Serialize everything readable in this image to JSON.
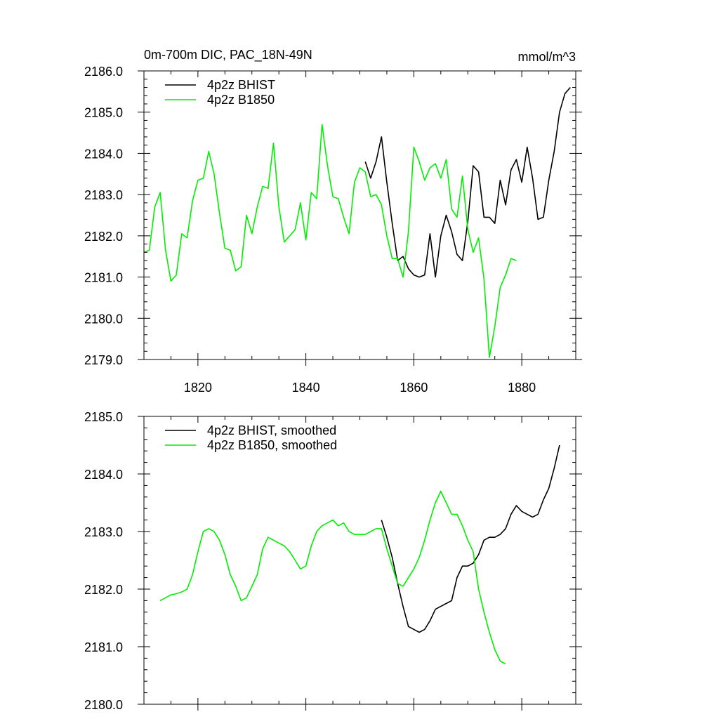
{
  "chart_data": [
    {
      "type": "line",
      "title_left": "0m-700m DIC, PAC_18N-49N",
      "title_right": "mmol/m^3",
      "xlim": [
        1810,
        1890
      ],
      "ylim": [
        2179.0,
        2186.0
      ],
      "xticks": [
        1820,
        1840,
        1860,
        1880
      ],
      "xtick_labels": [
        "1820",
        "1840",
        "1860",
        "1880"
      ],
      "yticks": [
        2179.0,
        2180.0,
        2181.0,
        2182.0,
        2183.0,
        2184.0,
        2185.0,
        2186.0
      ],
      "ytick_labels": [
        "2179.0",
        "2180.0",
        "2181.0",
        "2182.0",
        "2183.0",
        "2184.0",
        "2185.0",
        "2186.0"
      ],
      "legend_position": "top-left",
      "series": [
        {
          "name": "4p2z BHIST",
          "color": "#000000",
          "x": [
            1851,
            1852,
            1853,
            1854,
            1855,
            1856,
            1857,
            1858,
            1859,
            1860,
            1861,
            1862,
            1863,
            1864,
            1865,
            1866,
            1867,
            1868,
            1869,
            1870,
            1871,
            1872,
            1873,
            1874,
            1875,
            1876,
            1877,
            1878,
            1879,
            1880,
            1881,
            1882,
            1883,
            1884,
            1885,
            1886,
            1887,
            1888,
            1889
          ],
          "y": [
            2183.8,
            2183.4,
            2183.8,
            2184.4,
            2183.3,
            2182.3,
            2181.4,
            2181.5,
            2181.2,
            2181.05,
            2181.0,
            2181.05,
            2182.05,
            2181.0,
            2182.0,
            2182.5,
            2182.1,
            2181.55,
            2181.4,
            2182.35,
            2183.7,
            2183.55,
            2182.45,
            2182.45,
            2182.3,
            2183.35,
            2182.75,
            2183.6,
            2183.85,
            2183.3,
            2184.15,
            2183.4,
            2182.4,
            2182.45,
            2183.35,
            2184.05,
            2185.0,
            2185.45,
            2185.6
          ]
        },
        {
          "name": "4p2z B1850",
          "color": "#00ee00",
          "x": [
            1810,
            1811,
            1812,
            1813,
            1814,
            1815,
            1816,
            1817,
            1818,
            1819,
            1820,
            1821,
            1822,
            1823,
            1824,
            1825,
            1826,
            1827,
            1828,
            1829,
            1830,
            1831,
            1832,
            1833,
            1834,
            1835,
            1836,
            1837,
            1838,
            1839,
            1840,
            1841,
            1842,
            1843,
            1844,
            1845,
            1846,
            1847,
            1848,
            1849,
            1850,
            1851,
            1852,
            1853,
            1854,
            1855,
            1856,
            1857,
            1858,
            1859,
            1860,
            1861,
            1862,
            1863,
            1864,
            1865,
            1866,
            1867,
            1868,
            1869,
            1870,
            1871,
            1872,
            1873,
            1874,
            1875,
            1876,
            1877,
            1878,
            1879
          ],
          "y": [
            2181.6,
            2181.65,
            2182.7,
            2183.05,
            2181.65,
            2180.9,
            2181.05,
            2182.05,
            2181.95,
            2182.85,
            2183.35,
            2183.4,
            2184.05,
            2183.5,
            2182.55,
            2181.7,
            2181.65,
            2181.15,
            2181.25,
            2182.5,
            2182.05,
            2182.7,
            2183.2,
            2183.15,
            2184.25,
            2182.7,
            2181.85,
            2182.0,
            2182.15,
            2182.8,
            2181.9,
            2183.05,
            2182.9,
            2184.7,
            2183.7,
            2182.95,
            2182.9,
            2182.45,
            2182.05,
            2183.3,
            2183.65,
            2183.55,
            2182.95,
            2183.0,
            2182.75,
            2182.0,
            2181.45,
            2181.45,
            2181.0,
            2182.1,
            2184.15,
            2183.8,
            2183.35,
            2183.65,
            2183.75,
            2183.4,
            2183.85,
            2182.65,
            2182.45,
            2183.45,
            2182.15,
            2181.6,
            2181.95,
            2180.95,
            2179.05,
            2179.8,
            2180.75,
            2181.05,
            2181.45,
            2181.4
          ]
        }
      ]
    },
    {
      "type": "line",
      "xlim": [
        1810,
        1890
      ],
      "ylim": [
        2180.0,
        2185.0
      ],
      "xticks": [
        1820,
        1840,
        1860,
        1880
      ],
      "yticks": [
        2180.0,
        2181.0,
        2182.0,
        2183.0,
        2184.0,
        2185.0
      ],
      "ytick_labels": [
        "2180.0",
        "2181.0",
        "2182.0",
        "2183.0",
        "2184.0",
        "2185.0"
      ],
      "legend_position": "top-left",
      "series": [
        {
          "name": "4p2z BHIST, smoothed",
          "color": "#000000",
          "x": [
            1854,
            1855,
            1856,
            1857,
            1858,
            1859,
            1860,
            1861,
            1862,
            1863,
            1864,
            1865,
            1866,
            1867,
            1868,
            1869,
            1870,
            1871,
            1872,
            1873,
            1874,
            1875,
            1876,
            1877,
            1878,
            1879,
            1880,
            1881,
            1882,
            1883,
            1884,
            1885,
            1886,
            1887
          ],
          "y": [
            2183.2,
            2182.9,
            2182.55,
            2182.1,
            2181.7,
            2181.35,
            2181.3,
            2181.25,
            2181.3,
            2181.45,
            2181.65,
            2181.7,
            2181.75,
            2181.8,
            2182.2,
            2182.4,
            2182.4,
            2182.45,
            2182.6,
            2182.85,
            2182.9,
            2182.9,
            2182.95,
            2183.05,
            2183.3,
            2183.45,
            2183.35,
            2183.3,
            2183.25,
            2183.3,
            2183.55,
            2183.75,
            2184.1,
            2184.5
          ]
        },
        {
          "name": "4p2z B1850, smoothed",
          "color": "#00ee00",
          "x": [
            1813,
            1814,
            1815,
            1816,
            1817,
            1818,
            1819,
            1820,
            1821,
            1822,
            1823,
            1824,
            1825,
            1826,
            1827,
            1828,
            1829,
            1830,
            1831,
            1832,
            1833,
            1834,
            1835,
            1836,
            1837,
            1838,
            1839,
            1840,
            1841,
            1842,
            1843,
            1844,
            1845,
            1846,
            1847,
            1848,
            1849,
            1850,
            1851,
            1852,
            1853,
            1854,
            1855,
            1856,
            1857,
            1858,
            1859,
            1860,
            1861,
            1862,
            1863,
            1864,
            1865,
            1866,
            1867,
            1868,
            1869,
            1870,
            1871,
            1872,
            1873,
            1874,
            1875,
            1876,
            1877
          ],
          "y": [
            2181.8,
            2181.85,
            2181.9,
            2181.92,
            2181.95,
            2182.0,
            2182.25,
            2182.65,
            2183.0,
            2183.05,
            2183.0,
            2182.85,
            2182.6,
            2182.25,
            2182.05,
            2181.8,
            2181.85,
            2182.05,
            2182.25,
            2182.7,
            2182.9,
            2182.85,
            2182.8,
            2182.75,
            2182.65,
            2182.5,
            2182.35,
            2182.4,
            2182.75,
            2183.0,
            2183.1,
            2183.15,
            2183.2,
            2183.1,
            2183.15,
            2183.0,
            2182.95,
            2182.95,
            2182.95,
            2183.0,
            2183.05,
            2183.05,
            2182.7,
            2182.4,
            2182.1,
            2182.05,
            2182.2,
            2182.35,
            2182.55,
            2182.85,
            2183.2,
            2183.5,
            2183.7,
            2183.5,
            2183.3,
            2183.3,
            2183.1,
            2182.85,
            2182.65,
            2182.0,
            2181.6,
            2181.25,
            2180.95,
            2180.75,
            2180.7
          ]
        }
      ]
    }
  ]
}
